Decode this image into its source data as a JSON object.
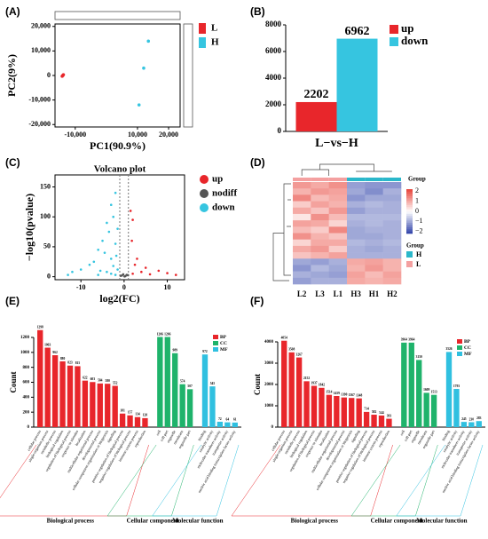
{
  "chart_data": [
    {
      "type": "scatter",
      "panel": "(A)",
      "xlabel": "PC1(90.9%)",
      "ylabel": "PC2(9%)",
      "xlim": [
        -16500,
        23700
      ],
      "ylim": [
        -21000,
        21000
      ],
      "xticks": [
        {
          "value": -10000,
          "label": "-10,000"
        },
        {
          "value": 10000,
          "label": "10,000"
        },
        {
          "value": 20000,
          "label": "20,000"
        }
      ],
      "yticks": [
        {
          "value": 20000,
          "label": "20,000"
        },
        {
          "value": 10000,
          "label": "10,000"
        },
        0,
        {
          "value": -10000,
          "label": "-10,000"
        },
        {
          "value": -20000,
          "label": "-20,000"
        }
      ],
      "series": [
        {
          "name": "L",
          "color": "#e8262b",
          "x": [
            -14200,
            -14000,
            -13800
          ],
          "y": [
            -300,
            0,
            300
          ]
        },
        {
          "name": "H",
          "color": "#36c5e0",
          "x": [
            10500,
            12000,
            13500
          ],
          "y": [
            -12000,
            3000,
            14000
          ]
        }
      ]
    },
    {
      "type": "bar",
      "panel": "(B)",
      "categories": [
        "L−vs−H"
      ],
      "ylim": [
        0,
        8000
      ],
      "yticks": [
        0,
        2000,
        4000,
        6000,
        8000
      ],
      "series": [
        {
          "name": "up",
          "color": "#e8262b",
          "values": [
            2202
          ]
        },
        {
          "name": "down",
          "color": "#36c5e0",
          "values": [
            6962
          ]
        }
      ]
    },
    {
      "type": "scatter",
      "panel": "(C)",
      "title": "Volcano plot",
      "xlabel": "log2(FC)",
      "ylabel": "−log10(pvalue)",
      "xlim": [
        -16,
        14
      ],
      "ylim": [
        -5,
        170
      ],
      "xticks": [
        -10,
        0,
        10
      ],
      "yticks": [
        0,
        50,
        100,
        150
      ],
      "vlines": [
        -1,
        1
      ],
      "series": [
        {
          "name": "up",
          "color": "#e8262b",
          "x": [
            1.5,
            2,
            1.8,
            3,
            2.5,
            5,
            8,
            4,
            10,
            12,
            6,
            2
          ],
          "y": [
            110,
            95,
            60,
            30,
            20,
            15,
            10,
            8,
            6,
            3,
            4,
            5
          ]
        },
        {
          "name": "nodiff",
          "color": "#555555",
          "x": [
            -0.5,
            0.3,
            0.6,
            -0.8,
            0.1,
            0.9,
            -0.2
          ],
          "y": [
            2,
            1,
            3,
            1.5,
            0.5,
            2.5,
            4
          ]
        },
        {
          "name": "down",
          "color": "#36c5e0",
          "x": [
            -2,
            -3,
            -2.5,
            -4,
            -1.5,
            -3.5,
            -5,
            -2,
            -6,
            -4.5,
            -1.8,
            -3,
            -7,
            -8,
            -2.5,
            -10,
            -12,
            -5.5,
            -1.5,
            -4,
            -3,
            -13,
            -6,
            -2
          ],
          "y": [
            140,
            120,
            100,
            90,
            80,
            75,
            60,
            55,
            45,
            40,
            35,
            30,
            25,
            20,
            18,
            12,
            8,
            10,
            12,
            8,
            5,
            3,
            3,
            3
          ]
        }
      ]
    },
    {
      "type": "heatmap",
      "panel": "(D)",
      "columns": [
        "L2",
        "L3",
        "L1",
        "H3",
        "H1",
        "H2"
      ],
      "column_groups": [
        "L",
        "L",
        "L",
        "H",
        "H",
        "H"
      ],
      "legend_title": "Group",
      "zlim": [
        -2.2,
        2.2
      ],
      "zticks": [
        2,
        1,
        0,
        {
          "value": -1,
          "label": "−1"
        },
        {
          "value": -2,
          "label": "−2"
        }
      ],
      "groups": [
        {
          "name": "H",
          "color": "#2ab7ca"
        },
        {
          "name": "L",
          "color": "#f4a0a0"
        }
      ],
      "values": [
        [
          1.2,
          1.0,
          1.3,
          -1.1,
          -1.2,
          -1.2
        ],
        [
          0.9,
          1.2,
          1.1,
          -1.0,
          -1.3,
          -0.9
        ],
        [
          1.4,
          0.8,
          1.0,
          -1.2,
          -1.0,
          -1.0
        ],
        [
          0.6,
          1.1,
          0.9,
          -0.9,
          -0.8,
          -0.9
        ],
        [
          1.0,
          0.7,
          1.2,
          -1.1,
          -0.9,
          -0.9
        ],
        [
          0.3,
          1.3,
          0.8,
          -0.8,
          -0.8,
          -0.8
        ],
        [
          1.1,
          1.0,
          0.5,
          -0.9,
          -0.8,
          -0.9
        ],
        [
          0.8,
          0.6,
          1.4,
          -1.0,
          -0.9,
          -0.9
        ],
        [
          1.3,
          0.9,
          0.7,
          -1.0,
          -1.0,
          -0.9
        ],
        [
          0.5,
          1.0,
          1.0,
          -0.8,
          -0.9,
          -0.8
        ],
        [
          1.0,
          1.2,
          0.6,
          -0.9,
          -1.0,
          -0.9
        ],
        [
          0.7,
          0.9,
          1.1,
          -0.9,
          -0.9,
          -0.9
        ],
        [
          -1.0,
          -1.1,
          -0.9,
          1.0,
          1.1,
          0.9
        ],
        [
          -1.2,
          -0.8,
          -1.0,
          0.9,
          1.2,
          0.9
        ],
        [
          -0.9,
          -1.0,
          -1.1,
          1.1,
          0.8,
          1.1
        ],
        [
          -1.1,
          -0.9,
          -0.9,
          1.0,
          0.9,
          1.0
        ]
      ]
    },
    {
      "type": "bar",
      "panel": "(E)",
      "ylabel": "Count",
      "ylim": [
        0,
        1200
      ],
      "yticks": [
        0,
        200,
        400,
        600,
        800,
        1000,
        1200
      ],
      "series": [
        {
          "name": "BP",
          "label": "Biological process",
          "color": "#e8262b",
          "categories": [
            "cellular process",
            "single-organism process",
            "metabolic process",
            "biological regulation",
            "regulation of biological process",
            "response to stimulus",
            "localization",
            "multicellular organismal process",
            "developmental process",
            "cellular component organization or biogenesis",
            "signaling",
            "positive regulation of biological process",
            "negative regulation of biological process",
            "immune system process",
            "reproduction"
          ],
          "values": [
            1298,
            1063,
            962,
            880,
            823,
            815,
            622,
            603,
            584,
            580,
            552,
            181,
            157,
            134,
            120
          ]
        },
        {
          "name": "CC",
          "label": "Cellular component",
          "color": "#1fb36b",
          "categories": [
            "cell",
            "cell part",
            "organelle",
            "membrane",
            "organelle part"
          ],
          "values": [
            1206,
            1206,
            989,
            574,
            507
          ]
        },
        {
          "name": "MF",
          "label": "Molecular function",
          "color": "#30c0e0",
          "categories": [
            "binding",
            "catalytic activity",
            "molecular transducer activity",
            "transporter activity",
            "nucleic acid binding transcription factor activity"
          ],
          "values": [
            972,
            545,
            72,
            64,
            61
          ]
        }
      ]
    },
    {
      "type": "bar",
      "panel": "(F)",
      "ylabel": "Count",
      "ylim": [
        0,
        4000
      ],
      "yticks": [
        0,
        1000,
        2000,
        3000,
        4000
      ],
      "series": [
        {
          "name": "BP",
          "label": "Biological process",
          "color": "#e8262b",
          "categories": [
            "cellular process",
            "single-organism process",
            "metabolic process",
            "biological regulation",
            "regulation of biological process",
            "response to stimulus",
            "localization",
            "multicellular organismal process",
            "developmental process",
            "cellular component organization or biogenesis",
            "signaling",
            "positive regulation of biological process",
            "negative regulation of biological process",
            "immune system process",
            "reproduction"
          ],
          "values": [
            4054,
            3508,
            3267,
            2152,
            1937,
            1842,
            1514,
            1459,
            1390,
            1367,
            1348,
            714,
            582,
            544,
            393
          ]
        },
        {
          "name": "CC",
          "label": "Cellular component",
          "color": "#1fb36b",
          "categories": [
            "cell",
            "cell part",
            "organelle",
            "membrane",
            "organelle part"
          ],
          "values": [
            3964,
            3964,
            3150,
            1609,
            1513
          ]
        },
        {
          "name": "MF",
          "label": "Molecular function",
          "color": "#30c0e0",
          "categories": [
            "binding",
            "catalytic activity",
            "molecular transducer activity",
            "transporter activity",
            "nucleic acid binding transcription factor activity"
          ],
          "values": [
            3526,
            1793,
            245,
            230,
            283
          ]
        }
      ]
    }
  ]
}
